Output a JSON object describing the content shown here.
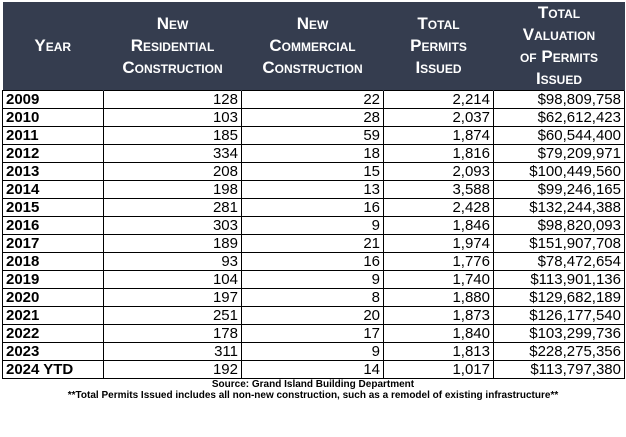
{
  "table": {
    "headers": [
      [
        "Year"
      ],
      [
        "New",
        "Residential",
        "Construction"
      ],
      [
        "New",
        "Commercial",
        "Construction"
      ],
      [
        "Total",
        "Permits",
        "Issued"
      ],
      [
        "Total",
        "Valuation",
        "of Permits",
        "Issued"
      ]
    ],
    "rows": [
      [
        "2009",
        "128",
        "22",
        "2,214",
        "$98,809,758"
      ],
      [
        "2010",
        "103",
        "28",
        "2,037",
        "$62,612,423"
      ],
      [
        "2011",
        "185",
        "59",
        "1,874",
        "$60,544,400"
      ],
      [
        "2012",
        "334",
        "18",
        "1,816",
        "$79,209,971"
      ],
      [
        "2013",
        "208",
        "15",
        "2,093",
        "$100,449,560"
      ],
      [
        "2014",
        "198",
        "13",
        "3,588",
        "$99,246,165"
      ],
      [
        "2015",
        "281",
        "16",
        "2,428",
        "$132,244,388"
      ],
      [
        "2016",
        "303",
        "9",
        "1,846",
        "$98,820,093"
      ],
      [
        "2017",
        "189",
        "21",
        "1,974",
        "$151,907,708"
      ],
      [
        "2018",
        "93",
        "16",
        "1,776",
        "$78,472,654"
      ],
      [
        "2019",
        "104",
        "9",
        "1,740",
        "$113,901,136"
      ],
      [
        "2020",
        "197",
        "8",
        "1,880",
        "$129,682,189"
      ],
      [
        "2021",
        "251",
        "20",
        "1,873",
        "$126,177,540"
      ],
      [
        "2022",
        "178",
        "17",
        "1,840",
        "$103,299,736"
      ],
      [
        "2023",
        "311",
        "9",
        "1,813",
        "$228,275,356"
      ],
      [
        "2024 YTD",
        "192",
        "14",
        "1,017",
        "$113,797,380"
      ]
    ]
  },
  "footer": {
    "source": "Source: Grand Island Building Department",
    "note": "**Total Permits Issued includes all non-new construction, such as a remodel of existing infrastructure**"
  },
  "colors": {
    "header_background": "#353d4f",
    "header_text": "#ffffff"
  }
}
